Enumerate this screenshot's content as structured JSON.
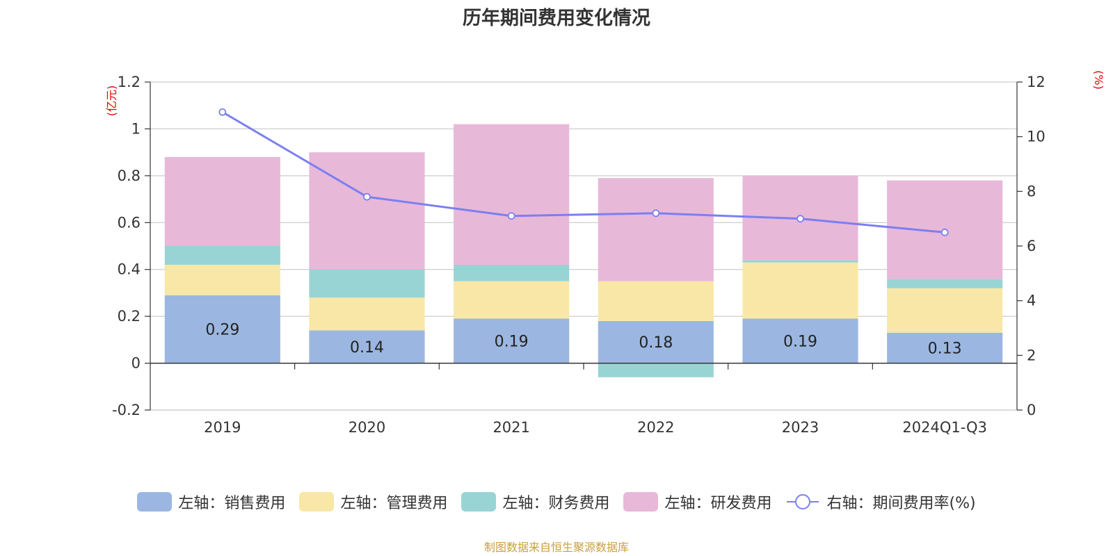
{
  "chart_data": {
    "type": "bar",
    "title": "历年期间费用变化情况",
    "categories": [
      "2019",
      "2020",
      "2021",
      "2022",
      "2023",
      "2024Q1-Q3"
    ],
    "series": [
      {
        "name": "左轴：销售费用",
        "axis": "left",
        "color": "#9bb7e1",
        "values": [
          0.29,
          0.14,
          0.19,
          0.18,
          0.19,
          0.13
        ]
      },
      {
        "name": "左轴：管理费用",
        "axis": "left",
        "color": "#f8e7a6",
        "values": [
          0.13,
          0.14,
          0.16,
          0.17,
          0.24,
          0.19
        ]
      },
      {
        "name": "左轴：财务费用",
        "axis": "left",
        "color": "#99d4d4",
        "values": [
          0.08,
          0.12,
          0.07,
          -0.06,
          0.01,
          0.04
        ]
      },
      {
        "name": "左轴：研发费用",
        "axis": "left",
        "color": "#e8b8d9",
        "values": [
          0.38,
          0.5,
          0.6,
          0.44,
          0.36,
          0.42
        ]
      },
      {
        "name": "右轴：期间费用率(%)",
        "axis": "right",
        "type": "line",
        "color": "#7b7ff0",
        "values": [
          10.9,
          7.8,
          7.1,
          7.2,
          7.0,
          6.5
        ]
      }
    ],
    "data_labels": [
      "0.29",
      "0.14",
      "0.19",
      "0.18",
      "0.19",
      "0.13"
    ],
    "y_left": {
      "unit": "(亿元)",
      "ylim": [
        -0.2,
        1.2
      ],
      "ticks": [
        "-0.2",
        "0",
        "0.2",
        "0.4",
        "0.6",
        "0.8",
        "1",
        "1.2"
      ]
    },
    "y_right": {
      "unit": "(%)",
      "ylim": [
        0,
        12
      ],
      "ticks": [
        "0",
        "2",
        "4",
        "6",
        "8",
        "10",
        "12"
      ]
    },
    "grid": true,
    "legend_position": "bottom",
    "source": "制图数据来自恒生聚源数据库"
  }
}
